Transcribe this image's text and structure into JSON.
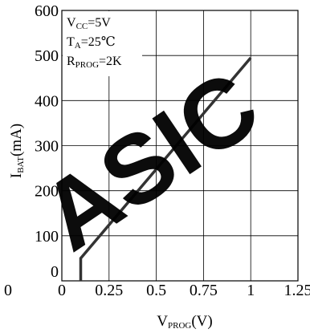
{
  "chart_data": {
    "type": "line",
    "xlabel": {
      "main": "V",
      "sub": "PROG",
      "tail": "(V)"
    },
    "ylabel": {
      "main": "I",
      "sub": "BAT",
      "tail": "(mA)"
    },
    "x_ticks": [
      "0",
      "0.25",
      "0.5",
      "0.75",
      "1",
      "1.25"
    ],
    "y_ticks": [
      "0",
      "100",
      "200",
      "300",
      "400",
      "500",
      "600"
    ],
    "xlim": [
      0,
      1.25
    ],
    "ylim": [
      0,
      600
    ],
    "grid": true,
    "stray_label": "0",
    "conditions": [
      {
        "main": "V",
        "sub": "CC",
        "tail": "=5V"
      },
      {
        "main": "T",
        "sub": "A",
        "tail": "=25℃"
      },
      {
        "main": "R",
        "sub": "PROG",
        "tail": "=2K"
      }
    ],
    "series": [
      {
        "color": "#333333",
        "x": [
          0.1,
          0.1,
          1.0
        ],
        "y": [
          0,
          50,
          495
        ]
      }
    ]
  },
  "watermark": {
    "text": "ASIC",
    "color": "#ee0000"
  }
}
